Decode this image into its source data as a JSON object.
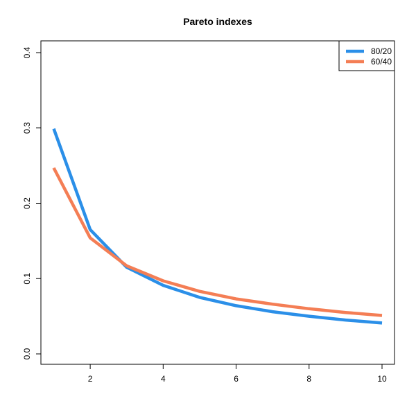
{
  "chart_data": {
    "type": "line",
    "title": "Pareto indexes",
    "xlabel": "",
    "ylabel": "",
    "x": [
      1,
      2,
      3,
      4,
      5,
      6,
      7,
      8,
      9,
      10
    ],
    "series": [
      {
        "name": "80/20",
        "color": "#2B8FE8",
        "values": [
          0.299,
          0.165,
          0.115,
          0.091,
          0.075,
          0.064,
          0.056,
          0.05,
          0.045,
          0.041
        ]
      },
      {
        "name": "60/40",
        "color": "#F47E55",
        "values": [
          0.247,
          0.154,
          0.117,
          0.097,
          0.083,
          0.073,
          0.066,
          0.06,
          0.055,
          0.051
        ]
      }
    ],
    "xlim": [
      1,
      10
    ],
    "ylim": [
      0,
      0.4
    ],
    "x_ticks": [
      "2",
      "4",
      "6",
      "8",
      "10"
    ],
    "y_ticks": [
      "0.0",
      "0.1",
      "0.2",
      "0.3",
      "0.4"
    ],
    "grid": false,
    "legend_position": "top-right"
  }
}
